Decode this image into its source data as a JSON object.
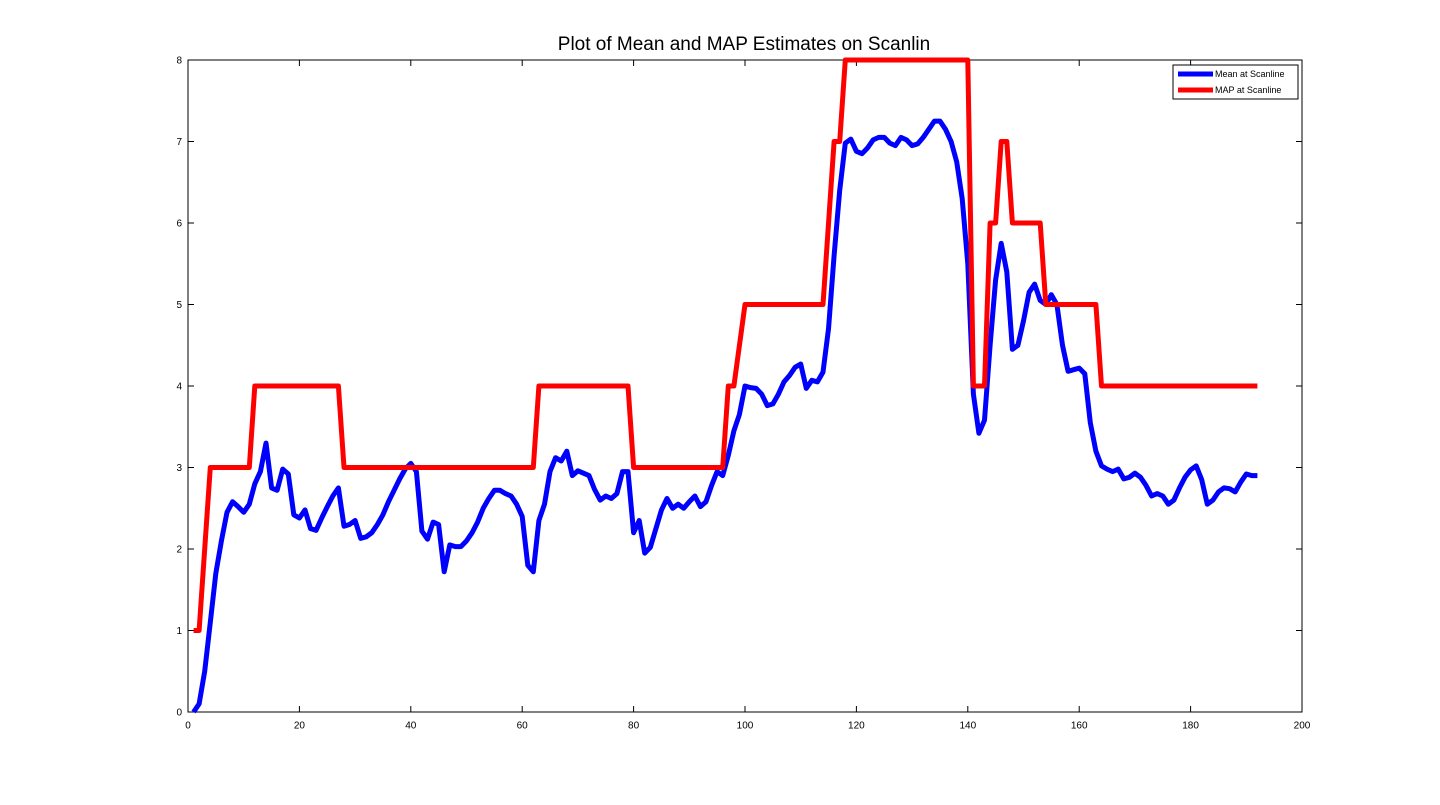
{
  "chart_data": {
    "type": "line",
    "title": "Plot of Mean and MAP Estimates on Scanlin",
    "xlabel": "",
    "ylabel": "",
    "xlim": [
      0,
      200
    ],
    "ylim": [
      0,
      8
    ],
    "xticks": [
      0,
      20,
      40,
      60,
      80,
      100,
      120,
      140,
      160,
      180,
      200
    ],
    "yticks": [
      0,
      1,
      2,
      3,
      4,
      5,
      6,
      7,
      8
    ],
    "grid": false,
    "legend": "top-right",
    "series": [
      {
        "name": "Mean at Scanline",
        "color": "#0000ff",
        "points": [
          [
            1,
            0
          ],
          [
            2,
            0.1
          ],
          [
            3,
            0.5
          ],
          [
            4,
            1.1
          ],
          [
            5,
            1.7
          ],
          [
            6,
            2.1
          ],
          [
            7,
            2.45
          ],
          [
            8,
            2.58
          ],
          [
            9,
            2.52
          ],
          [
            10,
            2.45
          ],
          [
            11,
            2.55
          ],
          [
            12,
            2.8
          ],
          [
            13,
            2.95
          ],
          [
            14,
            3.3
          ],
          [
            15,
            2.75
          ],
          [
            16,
            2.72
          ],
          [
            17,
            2.98
          ],
          [
            18,
            2.92
          ],
          [
            19,
            2.42
          ],
          [
            20,
            2.38
          ],
          [
            21,
            2.48
          ],
          [
            22,
            2.25
          ],
          [
            23,
            2.23
          ],
          [
            24,
            2.38
          ],
          [
            25,
            2.52
          ],
          [
            26,
            2.65
          ],
          [
            27,
            2.75
          ],
          [
            28,
            2.28
          ],
          [
            29,
            2.3
          ],
          [
            30,
            2.35
          ],
          [
            31,
            2.13
          ],
          [
            32,
            2.15
          ],
          [
            33,
            2.2
          ],
          [
            34,
            2.3
          ],
          [
            35,
            2.42
          ],
          [
            36,
            2.58
          ],
          [
            37,
            2.72
          ],
          [
            38,
            2.86
          ],
          [
            39,
            2.98
          ],
          [
            40,
            3.05
          ],
          [
            41,
            2.95
          ],
          [
            42,
            2.22
          ],
          [
            43,
            2.12
          ],
          [
            44,
            2.33
          ],
          [
            45,
            2.3
          ],
          [
            46,
            1.72
          ],
          [
            47,
            2.05
          ],
          [
            48,
            2.03
          ],
          [
            49,
            2.03
          ],
          [
            50,
            2.1
          ],
          [
            51,
            2.2
          ],
          [
            52,
            2.33
          ],
          [
            53,
            2.5
          ],
          [
            54,
            2.62
          ],
          [
            55,
            2.72
          ],
          [
            56,
            2.72
          ],
          [
            57,
            2.68
          ],
          [
            58,
            2.65
          ],
          [
            59,
            2.55
          ],
          [
            60,
            2.4
          ],
          [
            61,
            1.8
          ],
          [
            62,
            1.72
          ],
          [
            63,
            2.35
          ],
          [
            64,
            2.55
          ],
          [
            65,
            2.95
          ],
          [
            66,
            3.12
          ],
          [
            67,
            3.08
          ],
          [
            68,
            3.2
          ],
          [
            69,
            2.9
          ],
          [
            70,
            2.96
          ],
          [
            71,
            2.93
          ],
          [
            72,
            2.9
          ],
          [
            73,
            2.73
          ],
          [
            74,
            2.6
          ],
          [
            75,
            2.65
          ],
          [
            76,
            2.62
          ],
          [
            77,
            2.68
          ],
          [
            78,
            2.95
          ],
          [
            79,
            2.95
          ],
          [
            80,
            2.2
          ],
          [
            81,
            2.35
          ],
          [
            82,
            1.95
          ],
          [
            83,
            2.02
          ],
          [
            84,
            2.25
          ],
          [
            85,
            2.48
          ],
          [
            86,
            2.62
          ],
          [
            87,
            2.5
          ],
          [
            88,
            2.55
          ],
          [
            89,
            2.5
          ],
          [
            90,
            2.58
          ],
          [
            91,
            2.65
          ],
          [
            92,
            2.52
          ],
          [
            93,
            2.58
          ],
          [
            94,
            2.78
          ],
          [
            95,
            2.95
          ],
          [
            96,
            2.9
          ],
          [
            97,
            3.15
          ],
          [
            98,
            3.45
          ],
          [
            99,
            3.65
          ],
          [
            100,
            4.0
          ],
          [
            101,
            3.98
          ],
          [
            102,
            3.97
          ],
          [
            103,
            3.9
          ],
          [
            104,
            3.76
          ],
          [
            105,
            3.78
          ],
          [
            106,
            3.9
          ],
          [
            107,
            4.05
          ],
          [
            108,
            4.13
          ],
          [
            109,
            4.23
          ],
          [
            110,
            4.27
          ],
          [
            111,
            3.97
          ],
          [
            112,
            4.07
          ],
          [
            113,
            4.05
          ],
          [
            114,
            4.17
          ],
          [
            115,
            4.7
          ],
          [
            116,
            5.6
          ],
          [
            117,
            6.4
          ],
          [
            118,
            6.98
          ],
          [
            119,
            7.03
          ],
          [
            120,
            6.88
          ],
          [
            121,
            6.85
          ],
          [
            122,
            6.92
          ],
          [
            123,
            7.02
          ],
          [
            124,
            7.05
          ],
          [
            125,
            7.05
          ],
          [
            126,
            6.98
          ],
          [
            127,
            6.95
          ],
          [
            128,
            7.05
          ],
          [
            129,
            7.02
          ],
          [
            130,
            6.95
          ],
          [
            131,
            6.97
          ],
          [
            132,
            7.05
          ],
          [
            133,
            7.15
          ],
          [
            134,
            7.25
          ],
          [
            135,
            7.25
          ],
          [
            136,
            7.15
          ],
          [
            137,
            7.0
          ],
          [
            138,
            6.75
          ],
          [
            139,
            6.3
          ],
          [
            140,
            5.5
          ],
          [
            141,
            3.9
          ],
          [
            142,
            3.42
          ],
          [
            143,
            3.58
          ],
          [
            144,
            4.5
          ],
          [
            145,
            5.3
          ],
          [
            146,
            5.75
          ],
          [
            147,
            5.4
          ],
          [
            148,
            4.45
          ],
          [
            149,
            4.5
          ],
          [
            150,
            4.8
          ],
          [
            151,
            5.15
          ],
          [
            152,
            5.25
          ],
          [
            153,
            5.05
          ],
          [
            154,
            5.0
          ],
          [
            155,
            5.12
          ],
          [
            156,
            5.0
          ],
          [
            157,
            4.5
          ],
          [
            158,
            4.18
          ],
          [
            159,
            4.2
          ],
          [
            160,
            4.22
          ],
          [
            161,
            4.15
          ],
          [
            162,
            3.55
          ],
          [
            163,
            3.2
          ],
          [
            164,
            3.02
          ],
          [
            165,
            2.98
          ],
          [
            166,
            2.95
          ],
          [
            167,
            2.98
          ],
          [
            168,
            2.86
          ],
          [
            169,
            2.88
          ],
          [
            170,
            2.93
          ],
          [
            171,
            2.88
          ],
          [
            172,
            2.78
          ],
          [
            173,
            2.65
          ],
          [
            174,
            2.68
          ],
          [
            175,
            2.65
          ],
          [
            176,
            2.55
          ],
          [
            177,
            2.6
          ],
          [
            178,
            2.75
          ],
          [
            179,
            2.88
          ],
          [
            180,
            2.97
          ],
          [
            181,
            3.02
          ],
          [
            182,
            2.85
          ],
          [
            183,
            2.55
          ],
          [
            184,
            2.6
          ],
          [
            185,
            2.7
          ],
          [
            186,
            2.75
          ],
          [
            187,
            2.74
          ],
          [
            188,
            2.7
          ],
          [
            189,
            2.82
          ],
          [
            190,
            2.92
          ],
          [
            191,
            2.9
          ],
          [
            192,
            2.9
          ]
        ]
      },
      {
        "name": "MAP at Scanline",
        "color": "#ff0000",
        "points": [
          [
            1,
            1
          ],
          [
            2,
            1
          ],
          [
            4,
            3
          ],
          [
            11,
            3
          ],
          [
            12,
            4
          ],
          [
            27,
            4
          ],
          [
            28,
            3
          ],
          [
            62,
            3
          ],
          [
            63,
            4
          ],
          [
            79,
            4
          ],
          [
            80,
            3
          ],
          [
            96,
            3
          ],
          [
            97,
            4
          ],
          [
            98,
            4
          ],
          [
            100,
            5
          ],
          [
            114,
            5
          ],
          [
            116,
            7
          ],
          [
            117,
            7
          ],
          [
            118,
            8
          ],
          [
            140,
            8
          ],
          [
            141,
            4
          ],
          [
            143,
            4
          ],
          [
            144,
            6
          ],
          [
            145,
            6
          ],
          [
            146,
            7
          ],
          [
            147,
            7
          ],
          [
            148,
            6
          ],
          [
            153,
            6
          ],
          [
            154,
            5
          ],
          [
            163,
            5
          ],
          [
            164,
            4
          ],
          [
            192,
            4
          ]
        ]
      }
    ]
  }
}
